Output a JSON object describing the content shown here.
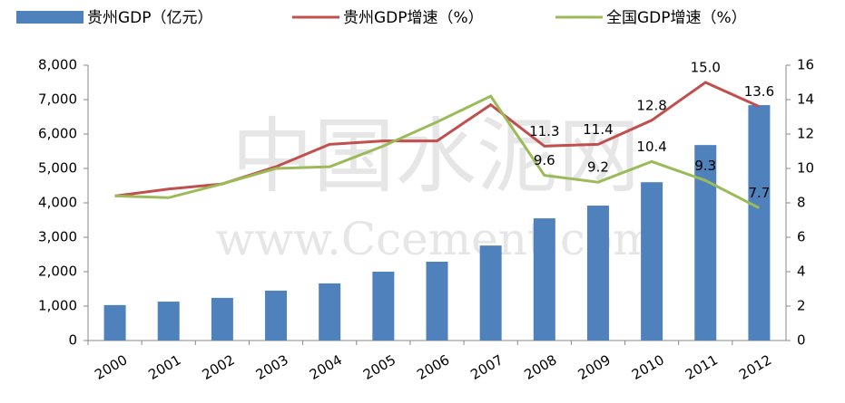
{
  "chart_data": {
    "type": "bar_line",
    "watermark": [
      "中国水泥网",
      "www.Ccement.com"
    ],
    "categories": [
      "2000",
      "2001",
      "2002",
      "2003",
      "2004",
      "2005",
      "2006",
      "2007",
      "2008",
      "2009",
      "2010",
      "2011",
      "2012"
    ],
    "series": [
      {
        "name": "贵州GDP（亿元）",
        "type": "bar",
        "color": "#4f81bd",
        "axis": "y",
        "values": [
          1030,
          1130,
          1240,
          1450,
          1660,
          2000,
          2290,
          2760,
          3550,
          3920,
          4600,
          5680,
          6840
        ]
      },
      {
        "name": "贵州GDP增速（%）",
        "type": "line",
        "color": "#c0504d",
        "axis": "y2",
        "values": [
          8.4,
          8.8,
          9.1,
          10.1,
          11.4,
          11.6,
          11.6,
          13.7,
          11.3,
          11.4,
          12.8,
          15.0,
          13.6
        ],
        "value_labels": [
          null,
          null,
          null,
          null,
          null,
          null,
          null,
          null,
          "11.3",
          "11.4",
          "12.8",
          "15.0",
          "13.6"
        ]
      },
      {
        "name": "全国GDP增速（%）",
        "type": "line",
        "color": "#9bbb59",
        "axis": "y2",
        "values": [
          8.4,
          8.3,
          9.1,
          10.0,
          10.1,
          11.3,
          12.7,
          14.2,
          9.6,
          9.2,
          10.4,
          9.3,
          7.7
        ],
        "value_labels": [
          null,
          null,
          null,
          null,
          null,
          null,
          null,
          null,
          "9.6",
          "9.2",
          "10.4",
          "9.3",
          "7.7"
        ]
      }
    ],
    "ylim": [
      0,
      8000
    ],
    "yticks": [
      0,
      {
        "value": 1000,
        "label": "1,000"
      },
      {
        "value": 2000,
        "label": "2,000"
      },
      {
        "value": 3000,
        "label": "3,000"
      },
      {
        "value": 4000,
        "label": "4,000"
      },
      {
        "value": 5000,
        "label": "5,000"
      },
      {
        "value": 6000,
        "label": "6,000"
      },
      {
        "value": 7000,
        "label": "7,000"
      },
      {
        "value": 8000,
        "label": "8,000"
      }
    ],
    "y2lim": [
      0,
      16
    ],
    "y2ticks": [
      0,
      2,
      4,
      6,
      8,
      10,
      12,
      14,
      16
    ],
    "grid": false,
    "legend": "top"
  }
}
